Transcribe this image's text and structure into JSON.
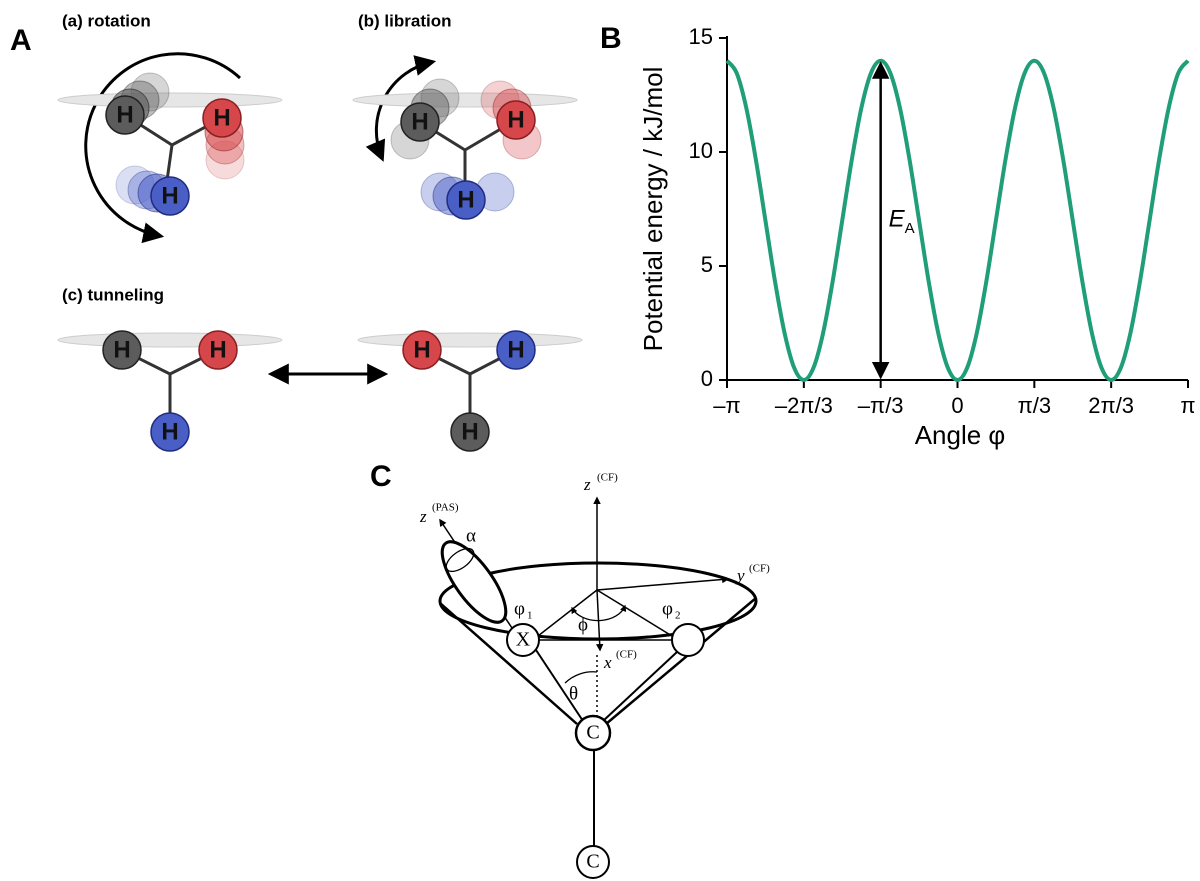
{
  "panel_a": {
    "letter": "A",
    "rotation": {
      "title": "(a) rotation",
      "atoms": [
        "H",
        "H",
        "H"
      ]
    },
    "libration": {
      "title": "(b) libration",
      "atoms": [
        "H",
        "H",
        "H"
      ]
    },
    "tunneling": {
      "title": "(c) tunneling",
      "left": [
        "H",
        "H",
        "H"
      ],
      "right": [
        "H",
        "H",
        "H"
      ]
    }
  },
  "chart_data": {
    "type": "line",
    "letter": "B",
    "xlabel": "Angle φ",
    "ylabel": "Potential energy / kJ/mol",
    "x": [
      -3.1416,
      -3.0107,
      -2.8798,
      -2.7489,
      -2.618,
      -2.4871,
      -2.3562,
      -2.2253,
      -2.0944,
      -1.9635,
      -1.8326,
      -1.7017,
      -1.5708,
      -1.4399,
      -1.309,
      -1.1781,
      -1.0472,
      -0.9163,
      -0.7854,
      -0.6545,
      -0.5236,
      -0.3927,
      -0.2618,
      -0.1309,
      0,
      0.1309,
      0.2618,
      0.3927,
      0.5236,
      0.6545,
      0.7854,
      0.9163,
      1.0472,
      1.1781,
      1.309,
      1.4399,
      1.5708,
      1.7017,
      1.8326,
      1.9635,
      2.0944,
      2.2253,
      2.3562,
      2.4871,
      2.618,
      2.7489,
      2.8798,
      3.0107,
      3.1416
    ],
    "values": [
      14,
      13.47,
      11.95,
      9.68,
      7,
      4.32,
      2.05,
      0.53,
      0,
      0.53,
      2.05,
      4.32,
      7,
      9.68,
      11.95,
      13.47,
      14,
      13.47,
      11.95,
      9.68,
      7,
      4.32,
      2.05,
      0.53,
      0,
      0.53,
      2.05,
      4.32,
      7,
      9.68,
      11.95,
      13.47,
      14,
      13.47,
      11.95,
      9.68,
      7,
      4.32,
      2.05,
      0.53,
      0,
      0.53,
      2.05,
      4.32,
      7,
      9.68,
      11.95,
      13.47,
      14
    ],
    "color": "#1f9e78",
    "xlim": [
      -3.1416,
      3.1416
    ],
    "xticks": [
      {
        "value": -3.1416,
        "label": "–π"
      },
      {
        "value": -2.0944,
        "label": "–2π/3"
      },
      {
        "value": -1.0472,
        "label": "–π/3"
      },
      0,
      {
        "value": 1.0472,
        "label": "π/3"
      },
      {
        "value": 2.0944,
        "label": "2π/3"
      },
      {
        "value": 3.1416,
        "label": "π"
      }
    ],
    "ylim": [
      0,
      15
    ],
    "yticks": [
      0,
      5,
      10,
      15
    ],
    "annotation": {
      "symbol": "E",
      "sub": "A",
      "x": -1.0472,
      "y": [
        0,
        14
      ]
    }
  },
  "panel_c": {
    "letter": "C",
    "z_cf": {
      "symbol": "z",
      "sup": "(CF)"
    },
    "z_pas": {
      "symbol": "z",
      "sup": "(PAS)"
    },
    "y_cf": {
      "symbol": "y",
      "sup": "(CF)"
    },
    "x_cf": {
      "symbol": "x",
      "sup": "(CF)"
    },
    "alpha": "α",
    "phi1": {
      "symbol": "φ",
      "sub": "1"
    },
    "phi2": {
      "symbol": "φ",
      "sub": "2"
    },
    "phi": "ϕ",
    "theta": "θ",
    "atoms": [
      "X",
      "C",
      "C"
    ]
  }
}
